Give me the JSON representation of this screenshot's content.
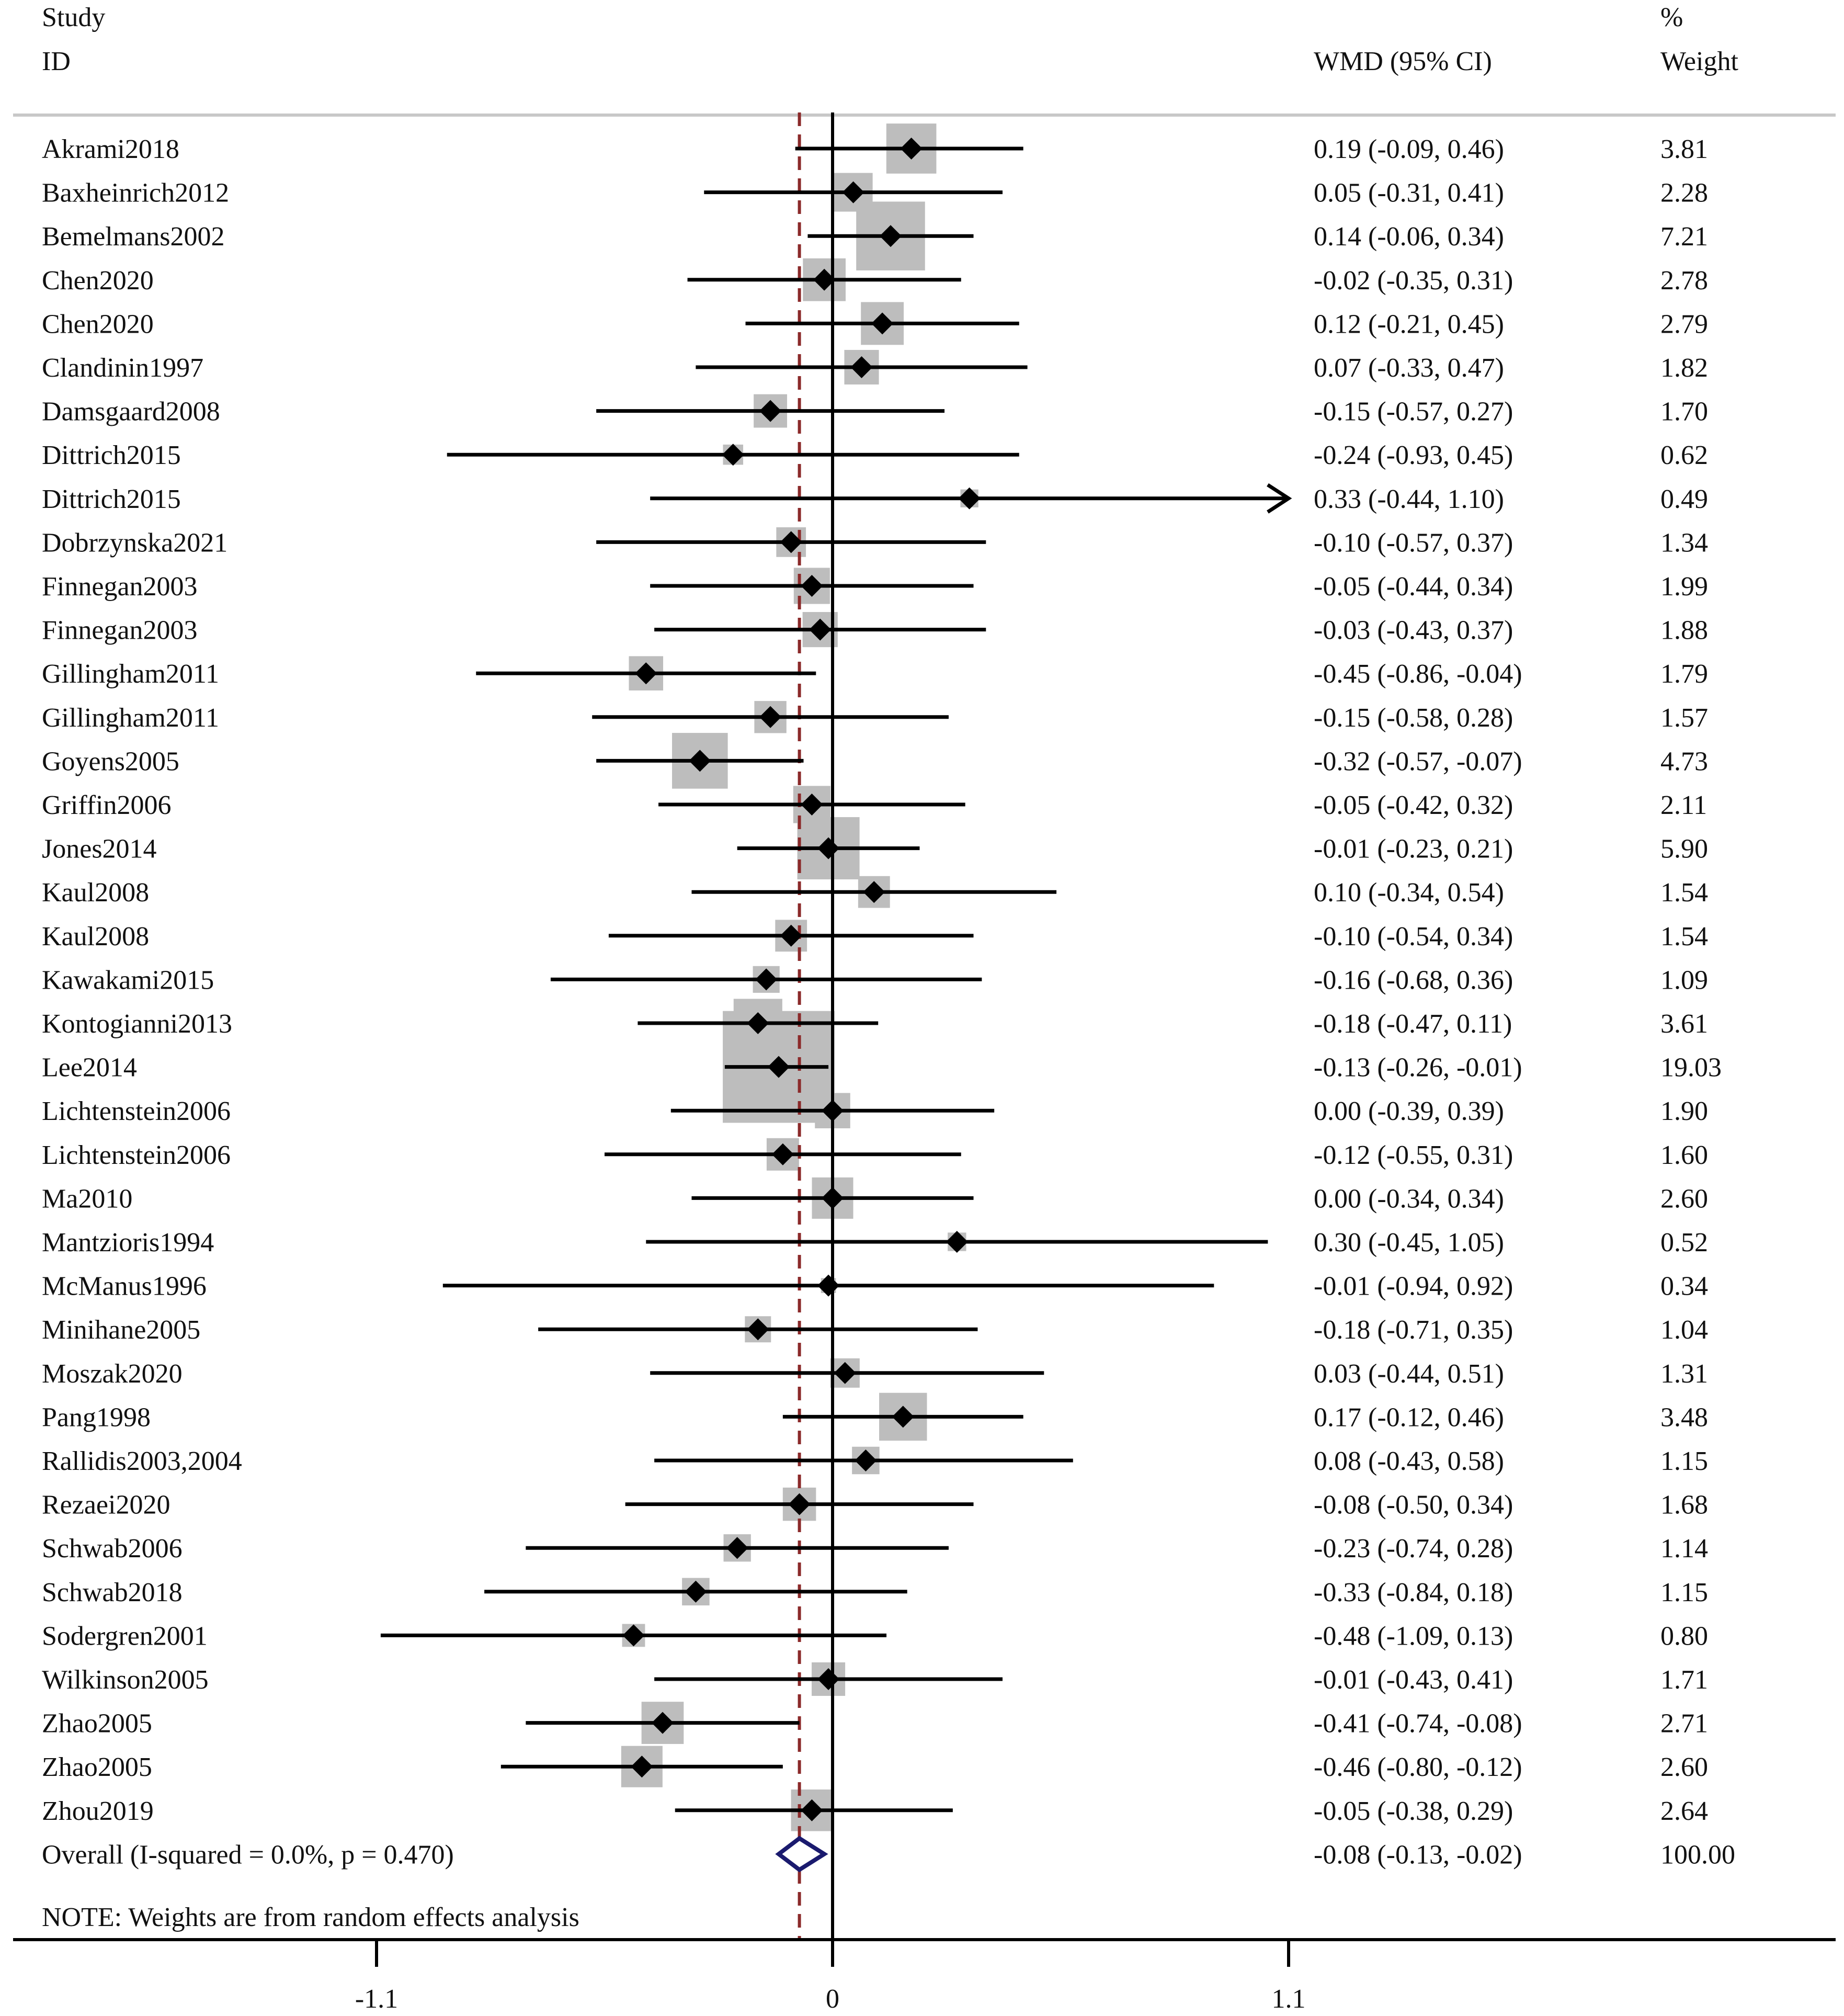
{
  "headers": {
    "study_line1": "Study",
    "study_line2": "ID",
    "effect": "WMD (95% CI)",
    "weight_line1": "%",
    "weight_line2": "Weight"
  },
  "colors": {
    "marker": "#000000",
    "box": "#bdbdbd",
    "overall_diamond": "#1a1a6e",
    "reference_line": "#8b2a2a",
    "axis": "#000000"
  },
  "note": "NOTE: Weights are from random effects analysis",
  "chart_data": {
    "type": "forest",
    "effect_measure": "WMD (95% CI)",
    "xlim": [
      -1.1,
      1.1
    ],
    "xticks": [
      -1.1,
      0,
      1.1
    ],
    "xtick_labels": [
      "-1.1",
      "0",
      "1.1"
    ],
    "null_line": 0,
    "overall_line": -0.08,
    "studies": [
      {
        "id": "Akrami2018",
        "wmd": 0.19,
        "lo": -0.09,
        "hi": 0.46,
        "ci": "0.19 (-0.09, 0.46)",
        "weight": 3.81,
        "weight_label": "3.81"
      },
      {
        "id": "Baxheinrich2012",
        "wmd": 0.05,
        "lo": -0.31,
        "hi": 0.41,
        "ci": "0.05 (-0.31, 0.41)",
        "weight": 2.28,
        "weight_label": "2.28"
      },
      {
        "id": "Bemelmans2002",
        "wmd": 0.14,
        "lo": -0.06,
        "hi": 0.34,
        "ci": "0.14 (-0.06, 0.34)",
        "weight": 7.21,
        "weight_label": "7.21"
      },
      {
        "id": "Chen2020",
        "wmd": -0.02,
        "lo": -0.35,
        "hi": 0.31,
        "ci": "-0.02 (-0.35, 0.31)",
        "weight": 2.78,
        "weight_label": "2.78"
      },
      {
        "id": "Chen2020",
        "wmd": 0.12,
        "lo": -0.21,
        "hi": 0.45,
        "ci": "0.12 (-0.21, 0.45)",
        "weight": 2.79,
        "weight_label": "2.79"
      },
      {
        "id": "Clandinin1997",
        "wmd": 0.07,
        "lo": -0.33,
        "hi": 0.47,
        "ci": "0.07 (-0.33, 0.47)",
        "weight": 1.82,
        "weight_label": "1.82"
      },
      {
        "id": "Damsgaard2008",
        "wmd": -0.15,
        "lo": -0.57,
        "hi": 0.27,
        "ci": "-0.15 (-0.57, 0.27)",
        "weight": 1.7,
        "weight_label": "1.70"
      },
      {
        "id": "Dittrich2015",
        "wmd": -0.24,
        "lo": -0.93,
        "hi": 0.45,
        "ci": "-0.24 (-0.93, 0.45)",
        "weight": 0.62,
        "weight_label": "0.62"
      },
      {
        "id": "Dittrich2015",
        "wmd": 0.33,
        "lo": -0.44,
        "hi": 1.1,
        "ci": "0.33 (-0.44, 1.10)",
        "weight": 0.49,
        "weight_label": "0.49",
        "arrow": true
      },
      {
        "id": "Dobrzynska2021",
        "wmd": -0.1,
        "lo": -0.57,
        "hi": 0.37,
        "ci": "-0.10 (-0.57, 0.37)",
        "weight": 1.34,
        "weight_label": "1.34"
      },
      {
        "id": "Finnegan2003",
        "wmd": -0.05,
        "lo": -0.44,
        "hi": 0.34,
        "ci": "-0.05 (-0.44, 0.34)",
        "weight": 1.99,
        "weight_label": "1.99"
      },
      {
        "id": "Finnegan2003",
        "wmd": -0.03,
        "lo": -0.43,
        "hi": 0.37,
        "ci": "-0.03 (-0.43, 0.37)",
        "weight": 1.88,
        "weight_label": "1.88"
      },
      {
        "id": "Gillingham2011",
        "wmd": -0.45,
        "lo": -0.86,
        "hi": -0.04,
        "ci": "-0.45 (-0.86, -0.04)",
        "weight": 1.79,
        "weight_label": "1.79"
      },
      {
        "id": "Gillingham2011",
        "wmd": -0.15,
        "lo": -0.58,
        "hi": 0.28,
        "ci": "-0.15 (-0.58, 0.28)",
        "weight": 1.57,
        "weight_label": "1.57"
      },
      {
        "id": "Goyens2005",
        "wmd": -0.32,
        "lo": -0.57,
        "hi": -0.07,
        "ci": "-0.32 (-0.57, -0.07)",
        "weight": 4.73,
        "weight_label": "4.73"
      },
      {
        "id": "Griffin2006",
        "wmd": -0.05,
        "lo": -0.42,
        "hi": 0.32,
        "ci": "-0.05 (-0.42, 0.32)",
        "weight": 2.11,
        "weight_label": "2.11"
      },
      {
        "id": "Jones2014",
        "wmd": -0.01,
        "lo": -0.23,
        "hi": 0.21,
        "ci": "-0.01 (-0.23, 0.21)",
        "weight": 5.9,
        "weight_label": "5.90"
      },
      {
        "id": "Kaul2008",
        "wmd": 0.1,
        "lo": -0.34,
        "hi": 0.54,
        "ci": "0.10 (-0.34, 0.54)",
        "weight": 1.54,
        "weight_label": "1.54"
      },
      {
        "id": "Kaul2008",
        "wmd": -0.1,
        "lo": -0.54,
        "hi": 0.34,
        "ci": "-0.10 (-0.54, 0.34)",
        "weight": 1.54,
        "weight_label": "1.54"
      },
      {
        "id": "Kawakami2015",
        "wmd": -0.16,
        "lo": -0.68,
        "hi": 0.36,
        "ci": "-0.16 (-0.68, 0.36)",
        "weight": 1.09,
        "weight_label": "1.09"
      },
      {
        "id": "Kontogianni2013",
        "wmd": -0.18,
        "lo": -0.47,
        "hi": 0.11,
        "ci": "-0.18 (-0.47, 0.11)",
        "weight": 3.61,
        "weight_label": "3.61"
      },
      {
        "id": "Lee2014",
        "wmd": -0.13,
        "lo": -0.26,
        "hi": -0.01,
        "ci": "-0.13 (-0.26, -0.01)",
        "weight": 19.03,
        "weight_label": "19.03"
      },
      {
        "id": "Lichtenstein2006",
        "wmd": 0.0,
        "lo": -0.39,
        "hi": 0.39,
        "ci": "0.00 (-0.39, 0.39)",
        "weight": 1.9,
        "weight_label": "1.90"
      },
      {
        "id": "Lichtenstein2006",
        "wmd": -0.12,
        "lo": -0.55,
        "hi": 0.31,
        "ci": "-0.12 (-0.55, 0.31)",
        "weight": 1.6,
        "weight_label": "1.60"
      },
      {
        "id": "Ma2010",
        "wmd": 0.0,
        "lo": -0.34,
        "hi": 0.34,
        "ci": "0.00 (-0.34, 0.34)",
        "weight": 2.6,
        "weight_label": "2.60"
      },
      {
        "id": "Mantzioris1994",
        "wmd": 0.3,
        "lo": -0.45,
        "hi": 1.05,
        "ci": "0.30 (-0.45, 1.05)",
        "weight": 0.52,
        "weight_label": "0.52"
      },
      {
        "id": "McManus1996",
        "wmd": -0.01,
        "lo": -0.94,
        "hi": 0.92,
        "ci": "-0.01 (-0.94, 0.92)",
        "weight": 0.34,
        "weight_label": "0.34"
      },
      {
        "id": "Minihane2005",
        "wmd": -0.18,
        "lo": -0.71,
        "hi": 0.35,
        "ci": "-0.18 (-0.71, 0.35)",
        "weight": 1.04,
        "weight_label": "1.04"
      },
      {
        "id": "Moszak2020",
        "wmd": 0.03,
        "lo": -0.44,
        "hi": 0.51,
        "ci": "0.03 (-0.44, 0.51)",
        "weight": 1.31,
        "weight_label": "1.31"
      },
      {
        "id": "Pang1998",
        "wmd": 0.17,
        "lo": -0.12,
        "hi": 0.46,
        "ci": "0.17 (-0.12, 0.46)",
        "weight": 3.48,
        "weight_label": "3.48"
      },
      {
        "id": "Rallidis2003,2004",
        "wmd": 0.08,
        "lo": -0.43,
        "hi": 0.58,
        "ci": "0.08 (-0.43, 0.58)",
        "weight": 1.15,
        "weight_label": "1.15"
      },
      {
        "id": "Rezaei2020",
        "wmd": -0.08,
        "lo": -0.5,
        "hi": 0.34,
        "ci": "-0.08 (-0.50, 0.34)",
        "weight": 1.68,
        "weight_label": "1.68"
      },
      {
        "id": "Schwab2006",
        "wmd": -0.23,
        "lo": -0.74,
        "hi": 0.28,
        "ci": "-0.23 (-0.74, 0.28)",
        "weight": 1.14,
        "weight_label": "1.14"
      },
      {
        "id": "Schwab2018",
        "wmd": -0.33,
        "lo": -0.84,
        "hi": 0.18,
        "ci": "-0.33 (-0.84, 0.18)",
        "weight": 1.15,
        "weight_label": "1.15"
      },
      {
        "id": "Sodergren2001",
        "wmd": -0.48,
        "lo": -1.09,
        "hi": 0.13,
        "ci": "-0.48 (-1.09, 0.13)",
        "weight": 0.8,
        "weight_label": "0.80"
      },
      {
        "id": "Wilkinson2005",
        "wmd": -0.01,
        "lo": -0.43,
        "hi": 0.41,
        "ci": "-0.01 (-0.43, 0.41)",
        "weight": 1.71,
        "weight_label": "1.71"
      },
      {
        "id": "Zhao2005",
        "wmd": -0.41,
        "lo": -0.74,
        "hi": -0.08,
        "ci": "-0.41 (-0.74, -0.08)",
        "weight": 2.71,
        "weight_label": "2.71"
      },
      {
        "id": "Zhao2005",
        "wmd": -0.46,
        "lo": -0.8,
        "hi": -0.12,
        "ci": "-0.46 (-0.80, -0.12)",
        "weight": 2.6,
        "weight_label": "2.60"
      },
      {
        "id": "Zhou2019",
        "wmd": -0.05,
        "lo": -0.38,
        "hi": 0.29,
        "ci": "-0.05 (-0.38, 0.29)",
        "weight": 2.64,
        "weight_label": "2.64"
      }
    ],
    "overall": {
      "label": "Overall  (I-squared = 0.0%, p = 0.470)",
      "wmd": -0.08,
      "lo": -0.13,
      "hi": -0.02,
      "ci": "-0.08 (-0.13, -0.02)",
      "weight": 100.0,
      "weight_label": "100.00"
    }
  }
}
